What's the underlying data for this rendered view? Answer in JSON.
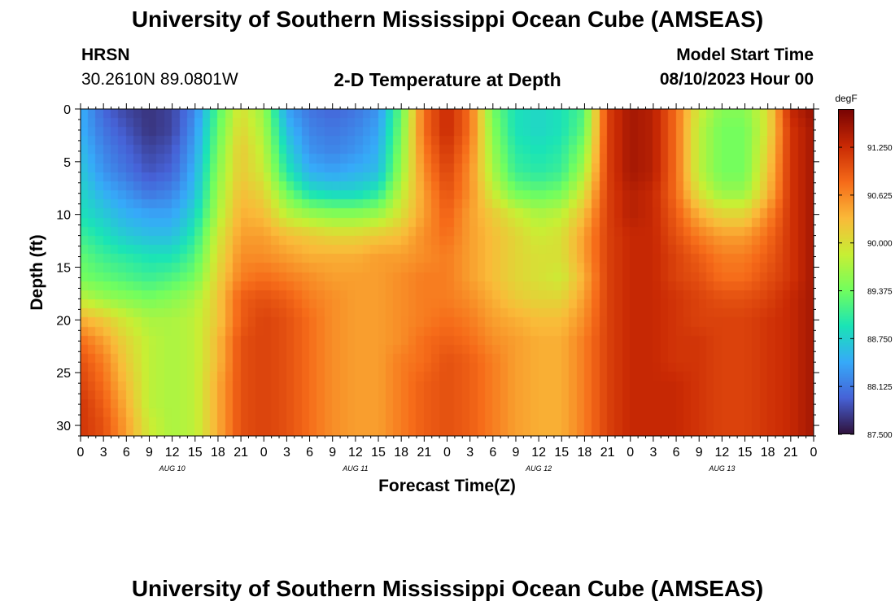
{
  "page": {
    "title_top": "University of Southern Mississippi Ocean Cube (AMSEAS)",
    "title_bottom": "University of Southern Mississippi Ocean Cube (AMSEAS)",
    "station": "HRSN",
    "coords": "30.2610N  89.0801W",
    "chart_title": "2-D Temperature at Depth",
    "model_label": "Model Start Time",
    "model_time": "08/10/2023 Hour 00"
  },
  "colors": {
    "palette": [
      "#30123b",
      "#4662d7",
      "#36aaf9",
      "#1ae4b6",
      "#72fe5e",
      "#c8ef34",
      "#faba39",
      "#f66b19",
      "#ca2a04",
      "#7a0403"
    ]
  },
  "chart_data": {
    "type": "heatmap",
    "title": "2-D Temperature at Depth",
    "xlabel": "Forecast Time(Z)",
    "ylabel": "Depth (ft)",
    "colorbar_label": "degF",
    "x_tick_labels": [
      "0",
      "3",
      "6",
      "9",
      "12",
      "15",
      "18",
      "21",
      "0",
      "3",
      "6",
      "9",
      "12",
      "15",
      "18",
      "21",
      "0",
      "3",
      "6",
      "9",
      "12",
      "15",
      "18",
      "21",
      "0",
      "3",
      "6",
      "9",
      "12",
      "15",
      "18",
      "21",
      "0"
    ],
    "x_range_hours": [
      0,
      96
    ],
    "day_labels": [
      {
        "label": "AUG 10",
        "hour": 12
      },
      {
        "label": "AUG 11",
        "hour": 36
      },
      {
        "label": "AUG 12",
        "hour": 60
      },
      {
        "label": "AUG 13",
        "hour": 84
      }
    ],
    "y_ticks": [
      0,
      5,
      10,
      15,
      20,
      25,
      30
    ],
    "y_tick_labels": [
      "0",
      "5",
      "10",
      "15",
      "20",
      "25",
      "30"
    ],
    "ylim": [
      31,
      0
    ],
    "clim": [
      87.5,
      91.75
    ],
    "colorbar_ticks": [
      87.5,
      88.125,
      88.75,
      89.375,
      90.0,
      90.625,
      91.25
    ],
    "colorbar_tick_labels": [
      "87.500",
      "88.125",
      "88.750",
      "89.375",
      "90.000",
      "90.625",
      "91.250"
    ],
    "depths_ft": [
      0,
      2,
      4,
      6,
      8,
      10,
      12,
      14,
      16,
      18,
      20,
      22,
      24,
      26,
      28,
      30,
      31
    ],
    "hours": [
      0,
      3,
      6,
      9,
      12,
      15,
      18,
      21,
      24,
      27,
      30,
      33,
      36,
      39,
      42,
      45,
      48,
      51,
      54,
      57,
      60,
      63,
      66,
      69,
      72,
      75,
      78,
      81,
      84,
      87,
      90,
      93,
      96
    ],
    "values_degF": [
      [
        88.5,
        88.0,
        87.8,
        87.7,
        87.8,
        88.2,
        89.2,
        90.0,
        89.6,
        88.4,
        88.1,
        88.0,
        88.1,
        88.3,
        89.3,
        90.8,
        91.3,
        90.8,
        89.4,
        88.9,
        88.8,
        88.9,
        89.2,
        91.1,
        91.5,
        91.4,
        90.8,
        89.9,
        89.5,
        89.5,
        90.0,
        91.3,
        91.6
      ],
      [
        88.5,
        88.1,
        87.9,
        87.7,
        87.8,
        88.3,
        89.3,
        90.1,
        89.7,
        88.6,
        88.2,
        88.1,
        88.2,
        88.4,
        89.4,
        90.8,
        91.3,
        90.8,
        89.5,
        88.9,
        88.8,
        88.9,
        89.3,
        91.1,
        91.5,
        91.4,
        90.8,
        89.8,
        89.4,
        89.4,
        90.0,
        91.2,
        91.5
      ],
      [
        88.6,
        88.2,
        88.0,
        87.8,
        87.9,
        88.4,
        89.4,
        90.2,
        89.8,
        88.8,
        88.3,
        88.2,
        88.3,
        88.5,
        89.5,
        90.7,
        91.2,
        90.7,
        89.6,
        89.0,
        88.9,
        89.0,
        89.5,
        91.1,
        91.5,
        91.4,
        90.8,
        89.8,
        89.4,
        89.4,
        90.1,
        91.2,
        91.5
      ],
      [
        88.7,
        88.3,
        88.1,
        87.9,
        88.0,
        88.5,
        89.5,
        90.2,
        89.9,
        89.0,
        88.5,
        88.4,
        88.5,
        88.6,
        89.6,
        90.6,
        91.1,
        90.6,
        89.7,
        89.1,
        89.0,
        89.1,
        89.7,
        91.1,
        91.5,
        91.4,
        90.8,
        89.8,
        89.4,
        89.4,
        90.2,
        91.2,
        91.5
      ],
      [
        88.8,
        88.5,
        88.3,
        88.1,
        88.2,
        88.6,
        89.6,
        90.3,
        90.1,
        89.4,
        88.9,
        88.8,
        88.8,
        89.0,
        89.8,
        90.5,
        91.0,
        90.6,
        89.9,
        89.4,
        89.3,
        89.4,
        90.0,
        91.1,
        91.4,
        91.3,
        90.8,
        90.0,
        89.6,
        89.6,
        90.3,
        91.2,
        91.5
      ],
      [
        88.9,
        88.7,
        88.5,
        88.4,
        88.4,
        88.8,
        89.7,
        90.4,
        90.3,
        89.8,
        89.6,
        89.5,
        89.5,
        89.6,
        90.0,
        90.5,
        90.9,
        90.5,
        90.2,
        89.9,
        89.7,
        89.8,
        90.3,
        91.1,
        91.4,
        91.3,
        90.9,
        90.4,
        90.1,
        90.1,
        90.6,
        91.2,
        91.5
      ],
      [
        89.1,
        88.9,
        88.7,
        88.6,
        88.6,
        89.0,
        89.9,
        90.5,
        90.5,
        90.3,
        90.2,
        90.1,
        90.1,
        90.2,
        90.3,
        90.6,
        90.8,
        90.5,
        90.3,
        90.1,
        89.9,
        90.0,
        90.5,
        91.1,
        91.3,
        91.3,
        91.0,
        90.7,
        90.5,
        90.5,
        90.8,
        91.2,
        91.5
      ],
      [
        89.3,
        89.1,
        89.0,
        88.9,
        88.9,
        89.2,
        90.0,
        90.6,
        90.6,
        90.5,
        90.4,
        90.4,
        90.4,
        90.5,
        90.5,
        90.6,
        90.7,
        90.5,
        90.3,
        90.1,
        90.0,
        90.0,
        90.5,
        91.1,
        91.3,
        91.3,
        91.1,
        90.9,
        90.7,
        90.7,
        90.9,
        91.2,
        91.5
      ],
      [
        89.4,
        89.3,
        89.2,
        89.1,
        89.2,
        89.4,
        90.1,
        90.7,
        90.8,
        90.7,
        90.6,
        90.5,
        90.5,
        90.5,
        90.6,
        90.7,
        90.7,
        90.5,
        90.3,
        90.1,
        90.0,
        89.9,
        90.4,
        91.1,
        91.3,
        91.3,
        91.1,
        91.0,
        90.8,
        90.8,
        91.0,
        91.2,
        91.5
      ],
      [
        89.8,
        89.6,
        89.5,
        89.4,
        89.5,
        89.7,
        90.2,
        90.9,
        91.0,
        90.9,
        90.7,
        90.6,
        90.5,
        90.5,
        90.6,
        90.7,
        90.7,
        90.6,
        90.4,
        90.2,
        90.1,
        90.1,
        90.5,
        91.1,
        91.3,
        91.3,
        91.2,
        91.1,
        91.0,
        91.0,
        91.1,
        91.3,
        91.5
      ],
      [
        90.4,
        90.2,
        89.9,
        89.7,
        89.7,
        89.8,
        90.2,
        90.9,
        91.1,
        91.0,
        90.8,
        90.6,
        90.5,
        90.5,
        90.6,
        90.7,
        90.8,
        90.7,
        90.5,
        90.4,
        90.3,
        90.3,
        90.6,
        91.1,
        91.3,
        91.3,
        91.2,
        91.1,
        91.1,
        91.1,
        91.2,
        91.3,
        91.5
      ],
      [
        90.8,
        90.5,
        90.1,
        89.8,
        89.7,
        89.8,
        90.3,
        91.0,
        91.1,
        91.0,
        90.8,
        90.6,
        90.5,
        90.5,
        90.6,
        90.8,
        90.9,
        90.8,
        90.6,
        90.5,
        90.4,
        90.4,
        90.7,
        91.1,
        91.3,
        91.3,
        91.2,
        91.2,
        91.1,
        91.1,
        91.2,
        91.3,
        91.5
      ],
      [
        91.0,
        90.7,
        90.2,
        89.8,
        89.7,
        89.8,
        90.3,
        91.0,
        91.1,
        91.0,
        90.8,
        90.6,
        90.5,
        90.5,
        90.7,
        90.8,
        91.0,
        90.9,
        90.7,
        90.5,
        90.4,
        90.4,
        90.7,
        91.1,
        91.3,
        91.3,
        91.2,
        91.2,
        91.1,
        91.1,
        91.2,
        91.3,
        91.5
      ],
      [
        91.1,
        90.8,
        90.3,
        89.8,
        89.7,
        89.8,
        90.4,
        91.0,
        91.1,
        91.0,
        90.8,
        90.6,
        90.5,
        90.5,
        90.7,
        90.9,
        91.0,
        90.9,
        90.7,
        90.5,
        90.4,
        90.4,
        90.7,
        91.1,
        91.3,
        91.3,
        91.3,
        91.2,
        91.1,
        91.1,
        91.2,
        91.3,
        91.5
      ],
      [
        91.2,
        90.9,
        90.4,
        89.8,
        89.7,
        89.8,
        90.4,
        91.0,
        91.1,
        91.0,
        90.8,
        90.6,
        90.5,
        90.5,
        90.7,
        90.9,
        91.0,
        90.9,
        90.7,
        90.5,
        90.4,
        90.4,
        90.7,
        91.1,
        91.3,
        91.3,
        91.3,
        91.2,
        91.1,
        91.1,
        91.2,
        91.3,
        91.5
      ],
      [
        91.2,
        91.0,
        90.5,
        89.9,
        89.7,
        89.8,
        90.4,
        91.0,
        91.1,
        91.0,
        90.8,
        90.6,
        90.5,
        90.5,
        90.7,
        90.9,
        91.0,
        90.9,
        90.7,
        90.5,
        90.4,
        90.4,
        90.7,
        91.1,
        91.3,
        91.3,
        91.3,
        91.2,
        91.1,
        91.1,
        91.2,
        91.3,
        91.5
      ],
      [
        91.2,
        91.0,
        90.5,
        89.9,
        89.7,
        89.8,
        90.4,
        91.0,
        91.1,
        91.0,
        90.8,
        90.6,
        90.5,
        90.5,
        90.7,
        90.9,
        91.0,
        90.9,
        90.7,
        90.5,
        90.4,
        90.4,
        90.7,
        91.1,
        91.3,
        91.3,
        91.3,
        91.2,
        91.1,
        91.1,
        91.2,
        91.3,
        91.5
      ]
    ]
  }
}
